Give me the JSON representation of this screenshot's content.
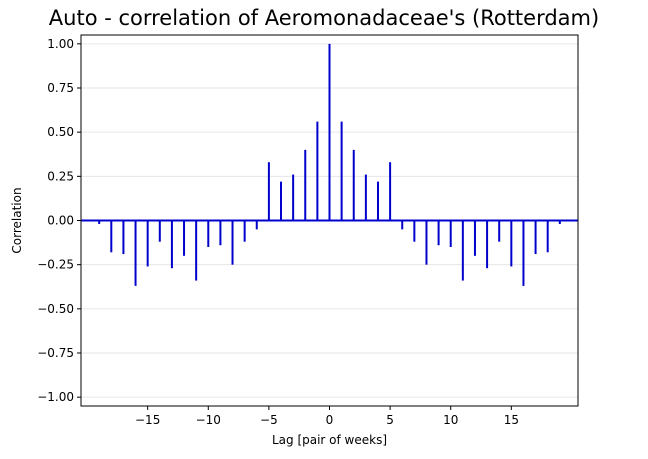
{
  "chart_data": {
    "type": "bar",
    "title": "Auto - correlation of Aeromonadaceae's (Rotterdam)",
    "xlabel": "Lag [pair of weeks]",
    "ylabel": "Correlation",
    "xlim": [
      -20.5,
      20.5
    ],
    "ylim": [
      -1.05,
      1.05
    ],
    "xticks": [
      -15,
      -10,
      -5,
      0,
      5,
      10,
      15
    ],
    "xtick_labels": [
      "−15",
      "−10",
      "−5",
      "0",
      "5",
      "10",
      "15"
    ],
    "yticks": [
      -1.0,
      -0.75,
      -0.5,
      -0.25,
      0.0,
      0.25,
      0.5,
      0.75,
      1.0
    ],
    "ytick_labels": [
      "−1.00",
      "−0.75",
      "−0.50",
      "−0.25",
      "0.00",
      "0.25",
      "0.50",
      "0.75",
      "1.00"
    ],
    "grid": "horizontal",
    "lag": [
      -19,
      -18,
      -17,
      -16,
      -15,
      -14,
      -13,
      -12,
      -11,
      -10,
      -9,
      -8,
      -7,
      -6,
      -5,
      -4,
      -3,
      -2,
      -1,
      0,
      1,
      2,
      3,
      4,
      5,
      6,
      7,
      8,
      9,
      10,
      11,
      12,
      13,
      14,
      15,
      16,
      17,
      18,
      19
    ],
    "correlation": [
      -0.02,
      -0.18,
      -0.19,
      -0.37,
      -0.26,
      -0.12,
      -0.27,
      -0.2,
      -0.34,
      -0.15,
      -0.14,
      -0.25,
      -0.12,
      -0.05,
      0.33,
      0.22,
      0.26,
      0.4,
      0.56,
      1.0,
      0.56,
      0.4,
      0.26,
      0.22,
      0.33,
      -0.05,
      -0.12,
      -0.25,
      -0.14,
      -0.15,
      -0.34,
      -0.2,
      -0.27,
      -0.12,
      -0.26,
      -0.37,
      -0.19,
      -0.18,
      -0.02
    ],
    "colors": {
      "bars": "#0000cc",
      "zero_line": "#0000cc",
      "grid": "#e6e6e6",
      "axes": "#000000"
    }
  }
}
